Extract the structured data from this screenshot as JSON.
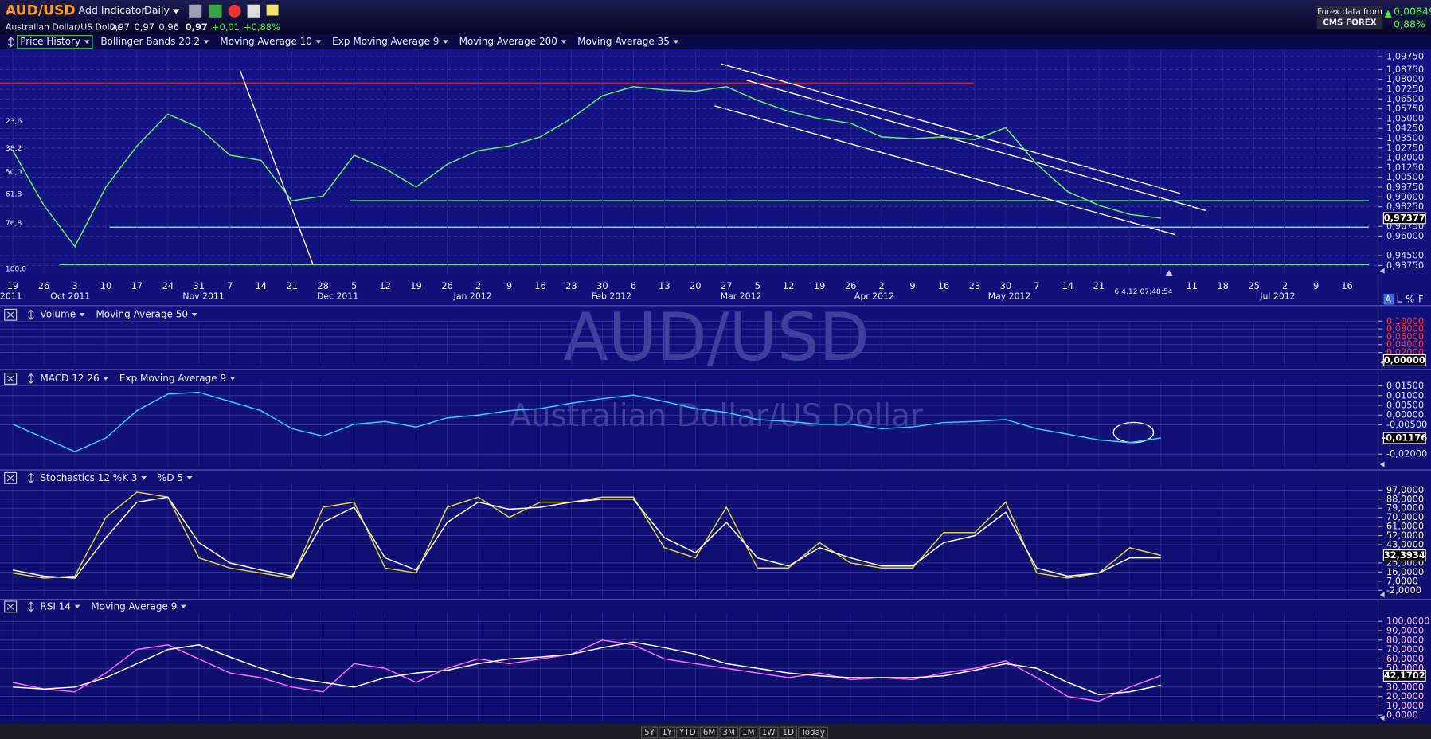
{
  "header": {
    "symbol": "AUD/USD",
    "add_indicator": "Add Indicator",
    "interval": "Daily",
    "instrument": "Australian Dollar/US Dollar",
    "open": "0,97",
    "high": "0,97",
    "low": "0,96",
    "close": "0,97",
    "change": "+0,01",
    "change_pct": "+0,88%",
    "data_source": "Forex data from",
    "provider": "CMS FOREX",
    "right_change": "0,00849",
    "right_change_pct": "0,88%",
    "timestamp": "6.4.12 07:48:54",
    "watermark_symbol": "AUD/USD",
    "watermark_name": "Australian Dollar/US Dollar"
  },
  "scale_buttons": [
    "A",
    "L",
    "%",
    "F"
  ],
  "ranges": [
    "5Y",
    "1Y",
    "YTD",
    "6M",
    "3M",
    "1M",
    "1W",
    "1D",
    "Today"
  ],
  "chart_data": [
    {
      "type": "line",
      "tick_color": "#d4dcff",
      "categories": [
        "19",
        "26",
        "3",
        "10",
        "17",
        "24",
        "31",
        "7",
        "14",
        "21",
        "28",
        "5",
        "12",
        "19",
        "26",
        "2",
        "9",
        "16",
        "23",
        "30",
        "6",
        "13",
        "20",
        "27",
        "5",
        "12",
        "19",
        "26",
        "2",
        "9",
        "16",
        "23",
        "30",
        "7",
        "14",
        "21",
        null,
        null,
        "11",
        "18",
        "25",
        "2",
        "9",
        "16"
      ],
      "month_labels": [
        "2011",
        "Oct 2011",
        "Nov 2011",
        "Dec 2011",
        "Jan 2012",
        "Feb 2012",
        "Mar 2012",
        "Apr 2012",
        "May 2012",
        "Jul 2012"
      ],
      "fib_labels": [
        "23,6",
        "38,2",
        "50,0",
        "61,8",
        "76,8",
        "100,0"
      ],
      "series": [
        {
          "name": "Price History",
          "color": "#66ee66",
          "values": [
            1.0255,
            0.9836,
            0.952,
            0.9976,
            1.029,
            1.0535,
            1.043,
            1.022,
            1.018,
            0.987,
            0.9906,
            1.022,
            1.0116,
            0.9976,
            1.015,
            1.0255,
            1.029,
            1.036,
            1.05,
            1.0675,
            1.0745,
            1.072,
            1.071,
            1.0745,
            1.064,
            1.0556,
            1.05,
            1.0465,
            1.036,
            1.0346,
            1.036,
            1.0339,
            1.0431,
            1.0151,
            0.994,
            0.9836,
            0.9766,
            0.97377,
            null,
            null,
            null,
            null,
            null,
            null
          ]
        },
        {
          "name": "Bollinger Bands 20 2",
          "color": "#ffffff"
        },
        {
          "name": "Moving Average 10",
          "color": "#7fd4ff"
        },
        {
          "name": "Exp Moving Average 9",
          "color": "#ffff40"
        },
        {
          "name": "Moving Average 200",
          "color": "#ff2a2a"
        },
        {
          "name": "Moving Average 35",
          "color": "#ff8a8a"
        }
      ],
      "ylim": [
        0.9312,
        1.1024
      ],
      "yticks": [
        {
          "value": 1.0975,
          "label": "1,09750"
        },
        {
          "value": 1.0875,
          "label": "1,08750"
        },
        {
          "value": 1.08,
          "label": "1,08000"
        },
        {
          "value": 1.0725,
          "label": "1,07250"
        },
        {
          "value": 1.065,
          "label": "1,06500"
        },
        {
          "value": 1.0575,
          "label": "1,05750"
        },
        {
          "value": 1.05,
          "label": "1,05000"
        },
        {
          "value": 1.0425,
          "label": "1,04250"
        },
        {
          "value": 1.035,
          "label": "1,03500"
        },
        {
          "value": 1.0275,
          "label": "1,02750"
        },
        {
          "value": 1.02,
          "label": "1,02000"
        },
        {
          "value": 1.0125,
          "label": "1,01250"
        },
        {
          "value": 1.005,
          "label": "1,00500"
        },
        {
          "value": 0.9975,
          "label": "0,99750"
        },
        {
          "value": 0.99,
          "label": "0,99000"
        },
        {
          "value": 0.9825,
          "label": "0,98250"
        },
        {
          "value": 0.9675,
          "label": "0,96750"
        },
        {
          "value": 0.96,
          "label": "0,96000"
        },
        {
          "value": 0.945,
          "label": "0,94500"
        },
        {
          "value": 0.9375,
          "label": "0,93750"
        }
      ],
      "current": {
        "value": 0.97377,
        "label": "0,97377"
      },
      "grid": true
    },
    {
      "type": "line",
      "tick_color": "#ff3030",
      "series": [
        {
          "name": "Volume",
          "color": "#ff3030"
        },
        {
          "name": "Moving Average 50",
          "color": "#ffffff"
        }
      ],
      "ylim": [
        -0.012,
        0.128
      ],
      "yticks": [
        {
          "value": 0.1,
          "label": "0,10000"
        },
        {
          "value": 0.08,
          "label": "0,08000"
        },
        {
          "value": 0.06,
          "label": "0,06000"
        },
        {
          "value": 0.04,
          "label": "0,04000"
        },
        {
          "value": 0.02,
          "label": "0,02000"
        }
      ],
      "current": {
        "value": 0,
        "label": "0,00000"
      },
      "grid": true
    },
    {
      "type": "line",
      "tick_color": "#cfe8ff",
      "series": [
        {
          "name": "MACD 12 26",
          "color": "#33ccff",
          "values": [
            -0.0047,
            -0.0117,
            -0.0188,
            -0.0117,
            0.0023,
            0.0108,
            0.0117,
            0.007,
            0.0023,
            -0.007,
            -0.0108,
            -0.0047,
            -0.0033,
            -0.0061,
            -0.0014,
            0,
            0.0023,
            0.0033,
            0.0061,
            0.0084,
            0.0103,
            0.007,
            0.0033,
            0.0014,
            -0.0023,
            -0.0033,
            -0.0047,
            -0.0047,
            -0.007,
            -0.0061,
            -0.0038,
            -0.0033,
            -0.0023,
            -0.007,
            -0.0098,
            -0.0127,
            -0.0141,
            -0.01176,
            null,
            null,
            null,
            null,
            null,
            null
          ]
        },
        {
          "name": "Exp Moving Average 9",
          "color": "#ffffff"
        }
      ],
      "ylim": [
        -0.0267,
        0.0234
      ],
      "yticks": [
        {
          "value": 0.015,
          "label": "0,01500"
        },
        {
          "value": 0.01,
          "label": "0,01000"
        },
        {
          "value": 0.005,
          "label": "0,00500"
        },
        {
          "value": 0,
          "label": "0,00000"
        },
        {
          "value": -0.005,
          "label": "-0,00500"
        },
        {
          "value": -0.02,
          "label": "-0,02000"
        }
      ],
      "current": {
        "value": -0.01176,
        "label": "-0,01176"
      },
      "grid": true
    },
    {
      "type": "line",
      "tick_color": "#f4f0c0",
      "series": [
        {
          "name": "Stochastics 12 %K 3",
          "color": "#e6d23a",
          "values": [
            15,
            10,
            12,
            70,
            95,
            90,
            30,
            20,
            15,
            10,
            80,
            85,
            20,
            15,
            80,
            90,
            70,
            85,
            85,
            90,
            90,
            40,
            30,
            80,
            20,
            20,
            45,
            25,
            20,
            20,
            55,
            55,
            85,
            15,
            10,
            15,
            40,
            32.3934,
            null,
            null,
            null,
            null,
            null,
            null
          ]
        },
        {
          "name": "%D 5",
          "color": "#ffffff",
          "values": [
            18,
            12,
            10,
            50,
            85,
            90,
            45,
            25,
            18,
            12,
            65,
            80,
            30,
            18,
            65,
            85,
            78,
            80,
            85,
            88,
            88,
            50,
            35,
            65,
            30,
            22,
            40,
            30,
            22,
            22,
            45,
            52,
            75,
            20,
            12,
            15,
            30,
            30,
            null,
            null,
            null,
            null,
            null,
            null
          ]
        }
      ],
      "ylim": [
        -9.2,
        114.2
      ],
      "yticks": [
        {
          "value": 97,
          "label": "97,0000"
        },
        {
          "value": 88,
          "label": "88,0000"
        },
        {
          "value": 79,
          "label": "79,0000"
        },
        {
          "value": 70,
          "label": "70,0000"
        },
        {
          "value": 61,
          "label": "61,0000"
        },
        {
          "value": 52,
          "label": "52,0000"
        },
        {
          "value": 43,
          "label": "43,0000"
        },
        {
          "value": 25,
          "label": "25,0000"
        },
        {
          "value": 16,
          "label": "16,0000"
        },
        {
          "value": 7,
          "label": "7,0000"
        },
        {
          "value": -2,
          "label": "-2,0000"
        }
      ],
      "current": {
        "value": 32.3934,
        "label": "32,3934"
      },
      "grid": true
    },
    {
      "type": "line",
      "tick_color": "#ffb8ff",
      "series": [
        {
          "name": "RSI 14",
          "color": "#ff66ff",
          "values": [
            35,
            28,
            25,
            45,
            70,
            75,
            60,
            45,
            40,
            30,
            25,
            55,
            50,
            35,
            50,
            60,
            55,
            60,
            65,
            80,
            75,
            60,
            55,
            50,
            45,
            40,
            45,
            38,
            40,
            38,
            45,
            50,
            58,
            40,
            20,
            15,
            30,
            42.1702,
            null,
            null,
            null,
            null,
            null,
            null
          ]
        },
        {
          "name": "Moving Average 9",
          "color": "#ffffff",
          "values": [
            30,
            28,
            30,
            40,
            55,
            70,
            75,
            62,
            50,
            40,
            35,
            30,
            40,
            45,
            48,
            55,
            60,
            62,
            65,
            72,
            78,
            72,
            65,
            55,
            50,
            45,
            42,
            40,
            40,
            40,
            42,
            48,
            55,
            50,
            35,
            22,
            25,
            32,
            null,
            null,
            null,
            null,
            null,
            null
          ]
        }
      ],
      "ylim": [
        -5.8,
        120.4
      ],
      "yticks": [
        {
          "value": 100,
          "label": "100,0000"
        },
        {
          "value": 90,
          "label": "90,0000"
        },
        {
          "value": 80,
          "label": "80,0000"
        },
        {
          "value": 70,
          "label": "70,0000"
        },
        {
          "value": 60,
          "label": "60,0000"
        },
        {
          "value": 50,
          "label": "50,0000"
        },
        {
          "value": 30,
          "label": "30,0000"
        },
        {
          "value": 20,
          "label": "20,0000"
        },
        {
          "value": 10,
          "label": "10,0000"
        },
        {
          "value": 0,
          "label": "0,0000"
        }
      ],
      "current": {
        "value": 42.1702,
        "label": "42,1702"
      },
      "grid": true
    }
  ]
}
